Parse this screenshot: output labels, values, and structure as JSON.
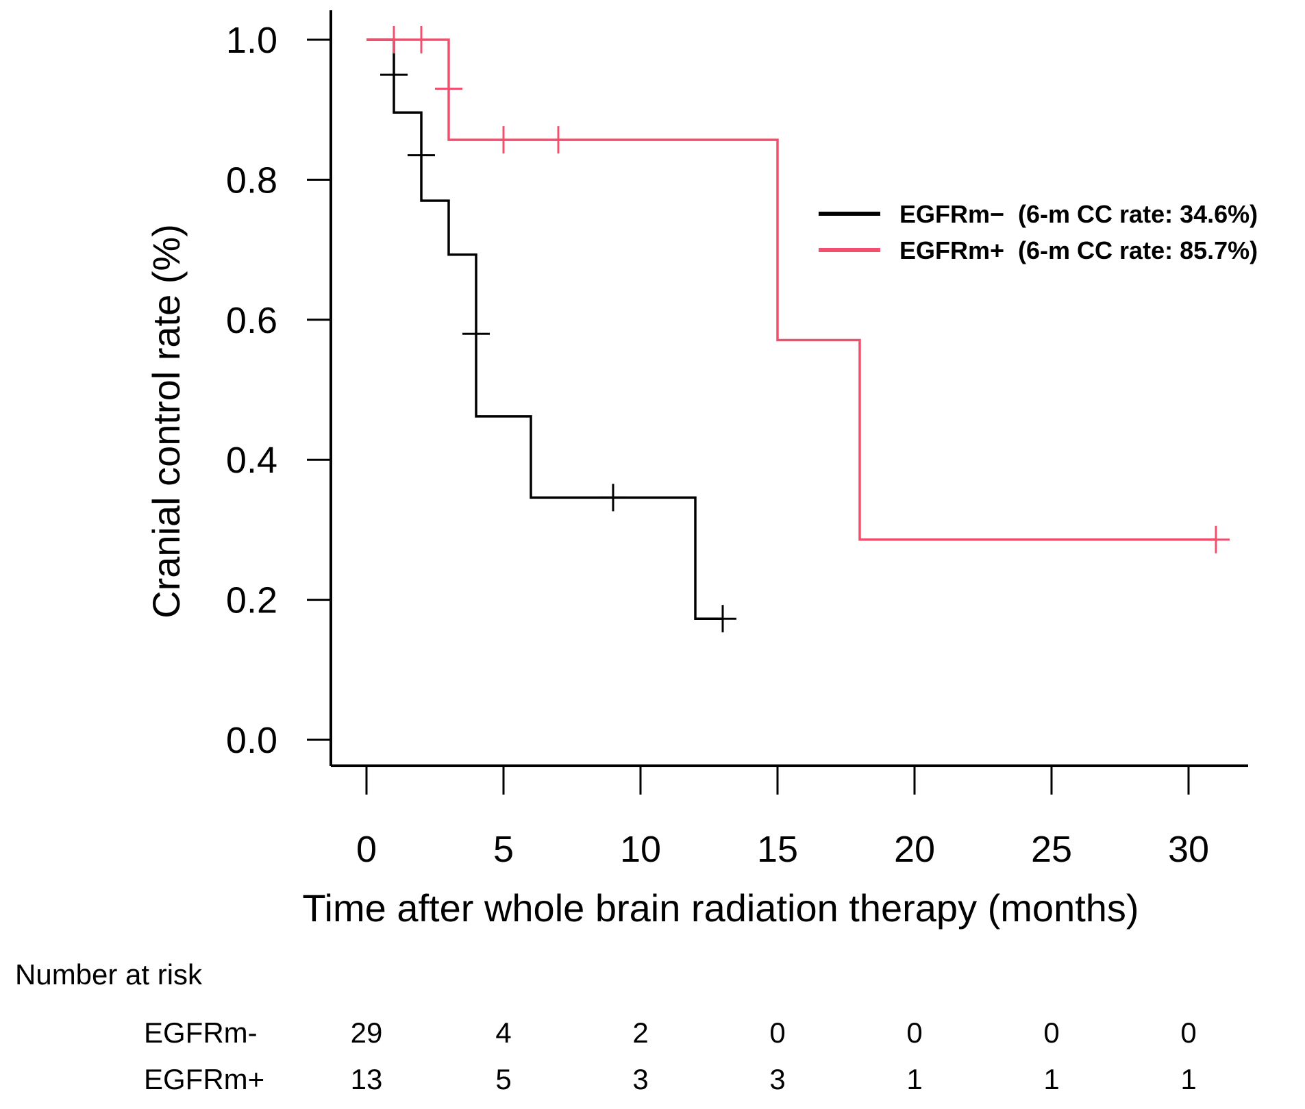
{
  "chart_data": {
    "type": "line",
    "subtype": "kaplan-meier",
    "title": "",
    "xlabel": "Time after whole brain radiation therapy (months)",
    "ylabel": "Cranial control rate (%)",
    "xlim": [
      0,
      32
    ],
    "ylim": [
      0,
      1.0
    ],
    "x_ticks": [
      0,
      5,
      10,
      15,
      20,
      25,
      30
    ],
    "x_tick_labels": [
      "0",
      "5",
      "10",
      "15",
      "20",
      "25",
      "30"
    ],
    "y_ticks": [
      0,
      0.2,
      0.4,
      0.6,
      0.8,
      1.0
    ],
    "y_tick_labels": [
      "0.0",
      "0.2",
      "0.4",
      "0.6",
      "0.8",
      "1.0"
    ],
    "grid": false,
    "legend_position": "top-right",
    "series": [
      {
        "name": "EGFRm−",
        "legend_label": "EGFRm−  (6-m CC rate: 34.6%)",
        "color": "#000000",
        "steps": [
          [
            0,
            1.0
          ],
          [
            1,
            0.896
          ],
          [
            2,
            0.77
          ],
          [
            3,
            0.693
          ],
          [
            4,
            0.462
          ],
          [
            6,
            0.346
          ],
          [
            12,
            0.173
          ],
          [
            13,
            0.173
          ]
        ],
        "censor_marks": [
          [
            1,
            0.95
          ],
          [
            2,
            0.835
          ],
          [
            4,
            0.58
          ],
          [
            9,
            0.346
          ],
          [
            13,
            0.173
          ]
        ]
      },
      {
        "name": "EGFRm+",
        "legend_label": "EGFRm+  (6-m CC rate: 85.7%)",
        "color": "#f0506e",
        "steps": [
          [
            0,
            1.0
          ],
          [
            3,
            0.857
          ],
          [
            15,
            0.571
          ],
          [
            18,
            0.286
          ],
          [
            31,
            0.286
          ]
        ],
        "censor_marks": [
          [
            1,
            1.0
          ],
          [
            2,
            1.0
          ],
          [
            3,
            0.93
          ],
          [
            5,
            0.857
          ],
          [
            7,
            0.857
          ],
          [
            31,
            0.286
          ]
        ]
      }
    ],
    "risk_table": {
      "title": "Number at risk",
      "rows": [
        {
          "label": "EGFRm-",
          "values": [
            "29",
            "4",
            "2",
            "0",
            "0",
            "0",
            "0"
          ]
        },
        {
          "label": "EGFRm+",
          "values": [
            "13",
            "5",
            "3",
            "3",
            "1",
            "1",
            "1"
          ]
        }
      ]
    }
  }
}
